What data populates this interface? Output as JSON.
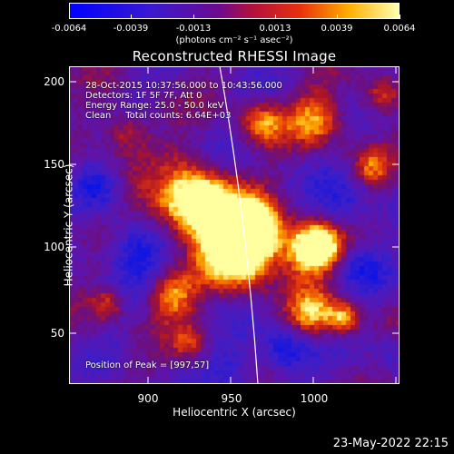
{
  "colorbar": {
    "ticks": [
      "-0.0064",
      "-0.0039",
      "-0.0013",
      "0.0013",
      "0.0039",
      "0.0064"
    ],
    "units": "(photons cm⁻² s⁻¹ asec⁻²)",
    "colors": [
      "#0000ff",
      "#5a00b0",
      "#9b0a5a",
      "#e8200f",
      "#ffb000",
      "#ffffa0"
    ]
  },
  "title": "Reconstructed RHESSI Image",
  "annotations": {
    "line1": "28-Oct-2015 10:37:56.000 to 10:43:56.000",
    "line2": "Detectors: 1F 5F 7F, Att 0",
    "line3": "Energy Range: 25.0 - 50.0 keV",
    "line4": "Clean     Total counts: 6.64E+03",
    "peak": "Position of Peak = [997,57]"
  },
  "axes": {
    "xlabel": "Heliocentric X (arcsec)",
    "ylabel": "Heliocentric Y (arcsec)",
    "xticks": [
      "900",
      "950",
      "1000"
    ],
    "yticks": [
      "200",
      "150",
      "100",
      "50"
    ]
  },
  "datestamp": "23-May-2022 22:15"
}
